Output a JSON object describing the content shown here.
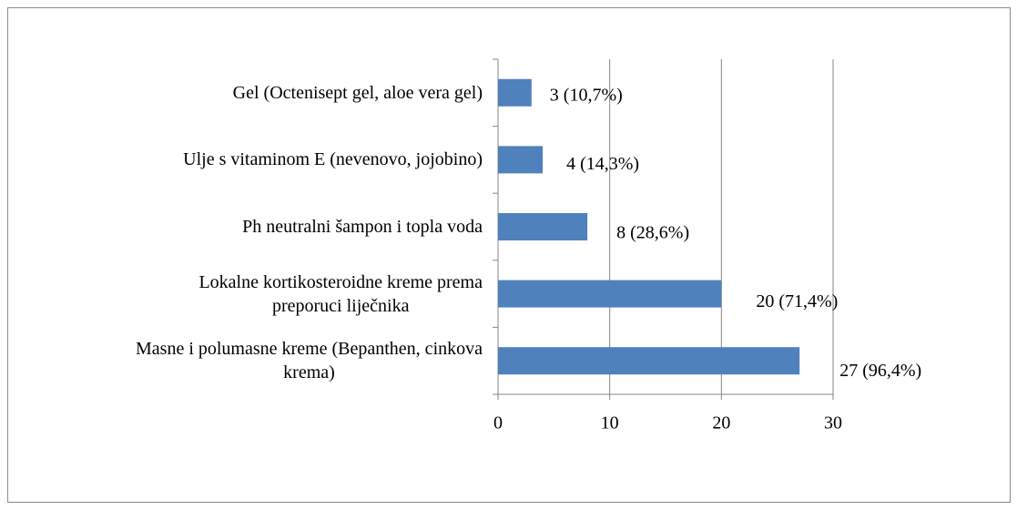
{
  "chart_data": {
    "type": "bar",
    "orientation": "horizontal",
    "categories": [
      "Gel (Octenisept gel, aloe vera gel)",
      "Ulje s vitaminom E (nevenovo, jojobino)",
      "Ph neutralni šampon i topla voda",
      "Lokalne kortikosteroidne kreme prema\npreporuci liječnika",
      "Masne i polumasne kreme (Bepanthen, cinkova\nkrema)"
    ],
    "values": [
      3,
      4,
      8,
      20,
      27
    ],
    "value_labels": [
      "3 (10,7%)",
      "4 (14,3%)",
      "8 (28,6%)",
      "20 (71,4%)",
      "27 (96,4%)"
    ],
    "color": "#4f81bd",
    "xlim": [
      0,
      30
    ],
    "xticks": [
      0,
      10,
      20,
      30
    ],
    "grid": true
  }
}
